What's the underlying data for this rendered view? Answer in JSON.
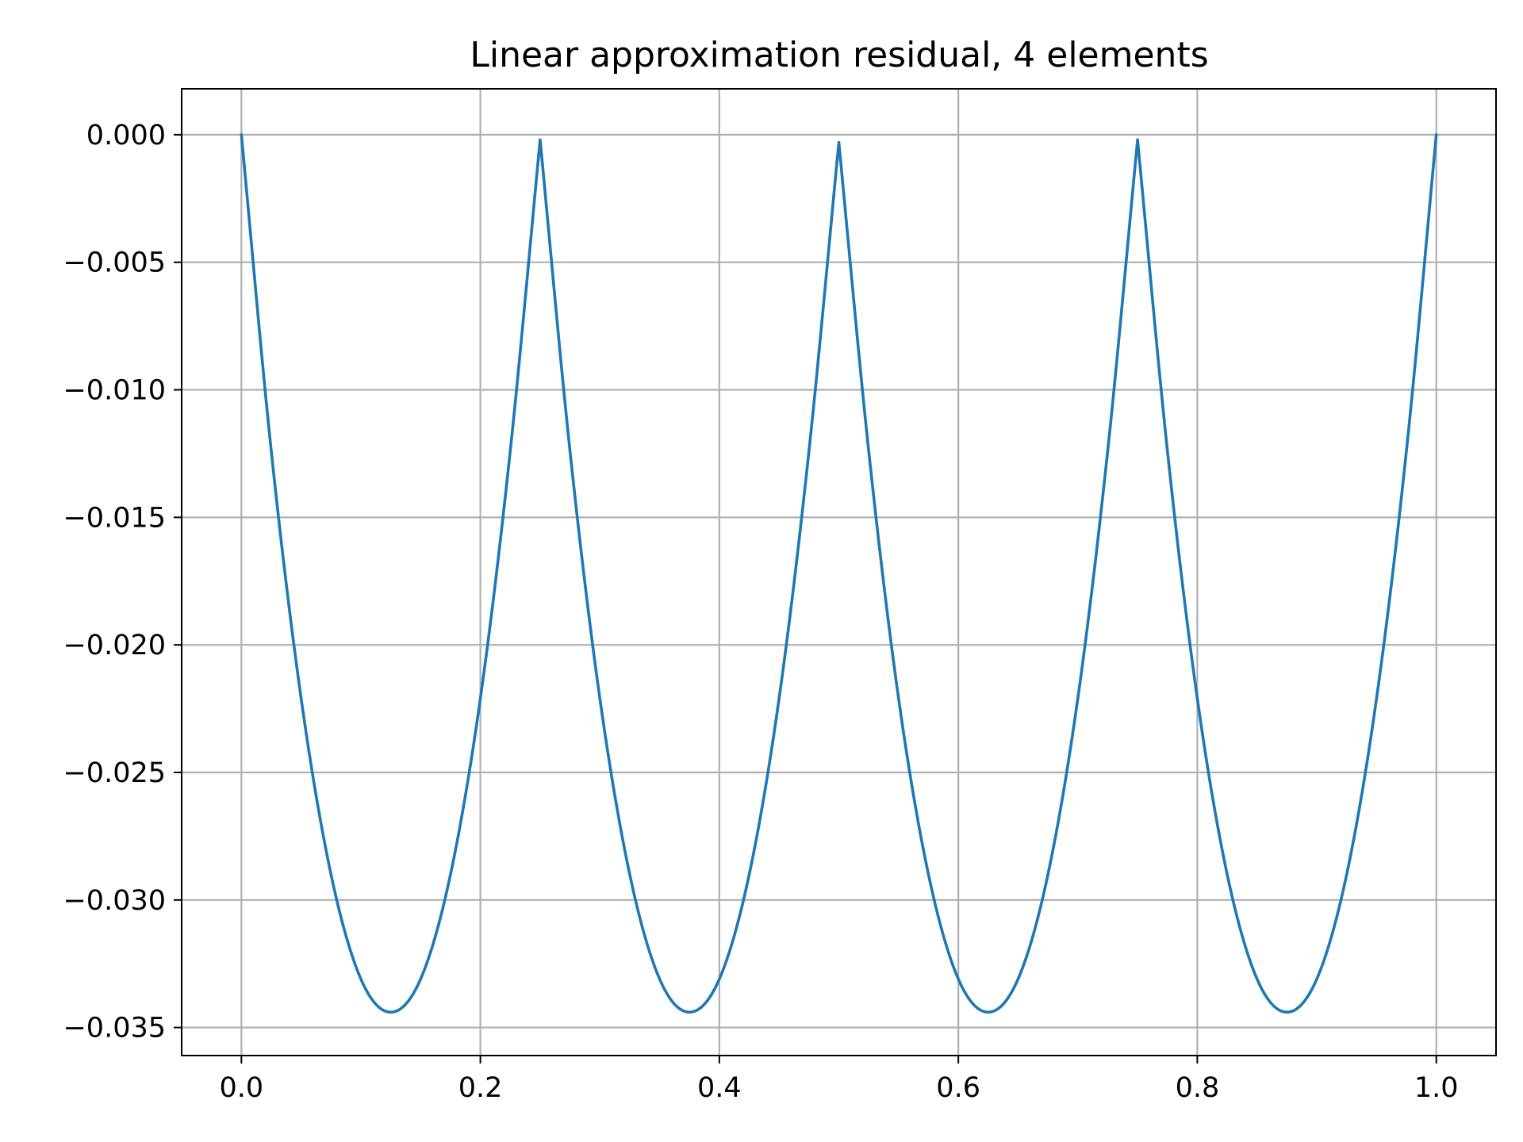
{
  "chart_data": {
    "type": "line",
    "title": "Linear approximation residual, 4 elements",
    "xlabel": "",
    "ylabel": "",
    "xlim": [
      -0.05,
      1.05
    ],
    "ylim": [
      -0.0361,
      0.0018
    ],
    "grid": true,
    "x_ticks": [
      0.0,
      0.2,
      0.4,
      0.6,
      0.8,
      1.0
    ],
    "x_tick_labels": [
      "0.0",
      "0.2",
      "0.4",
      "0.6",
      "0.8",
      "1.0"
    ],
    "y_ticks": [
      0.0,
      -0.005,
      -0.01,
      -0.015,
      -0.02,
      -0.025,
      -0.03,
      -0.035
    ],
    "y_tick_labels": [
      "0.000",
      "−0.005",
      "−0.010",
      "−0.015",
      "−0.020",
      "−0.025",
      "−0.030",
      "−0.035"
    ],
    "series": [
      {
        "color": "#1f77b4",
        "x": [
          0.0,
          0.025,
          0.05,
          0.075,
          0.1,
          0.125,
          0.15,
          0.175,
          0.2,
          0.225,
          0.25,
          0.275,
          0.3,
          0.325,
          0.35,
          0.375,
          0.4,
          0.425,
          0.45,
          0.475,
          0.5,
          0.525,
          0.55,
          0.575,
          0.6,
          0.625,
          0.65,
          0.675,
          0.7,
          0.725,
          0.75,
          0.775,
          0.8,
          0.825,
          0.85,
          0.875,
          0.9,
          0.925,
          0.95,
          0.975,
          1.0
        ],
        "y": [
          0.0,
          -0.0124,
          -0.0221,
          -0.029,
          -0.0331,
          -0.0344,
          -0.0331,
          -0.029,
          -0.0221,
          -0.0124,
          -0.0002,
          -0.0124,
          -0.0221,
          -0.029,
          -0.0331,
          -0.0344,
          -0.0331,
          -0.029,
          -0.0221,
          -0.0124,
          -0.0003,
          -0.0124,
          -0.0221,
          -0.029,
          -0.0331,
          -0.0344,
          -0.0331,
          -0.029,
          -0.0221,
          -0.0124,
          -0.0002,
          -0.0124,
          -0.0221,
          -0.029,
          -0.0331,
          -0.0344,
          -0.0331,
          -0.029,
          -0.0221,
          -0.0124,
          0.0
        ]
      }
    ]
  }
}
